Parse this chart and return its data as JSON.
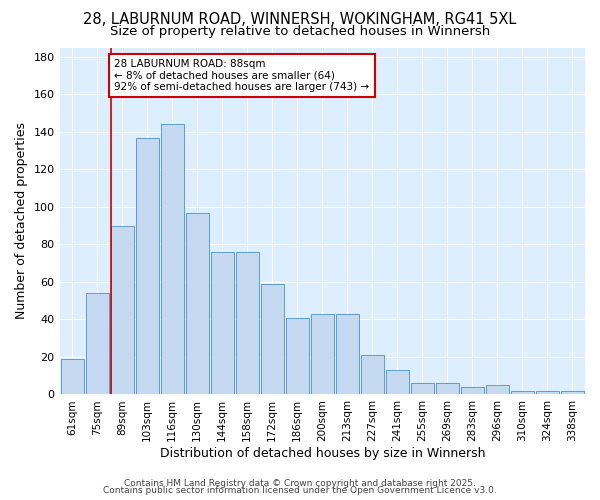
{
  "title1": "28, LABURNUM ROAD, WINNERSH, WOKINGHAM, RG41 5XL",
  "title2": "Size of property relative to detached houses in Winnersh",
  "xlabel": "Distribution of detached houses by size in Winnersh",
  "ylabel": "Number of detached properties",
  "categories": [
    "61sqm",
    "75sqm",
    "89sqm",
    "103sqm",
    "116sqm",
    "130sqm",
    "144sqm",
    "158sqm",
    "172sqm",
    "186sqm",
    "200sqm",
    "213sqm",
    "227sqm",
    "241sqm",
    "255sqm",
    "269sqm",
    "283sqm",
    "296sqm",
    "310sqm",
    "324sqm",
    "338sqm"
  ],
  "values": [
    19,
    54,
    90,
    137,
    144,
    97,
    76,
    76,
    59,
    41,
    43,
    43,
    21,
    13,
    6,
    6,
    4,
    5,
    2,
    2,
    2
  ],
  "bar_color": "#c5d9f0",
  "bar_edge_color": "#5b9bd5",
  "vline_color": "#cc0000",
  "annotation_text": "28 LABURNUM ROAD: 88sqm\n← 8% of detached houses are smaller (64)\n92% of semi-detached houses are larger (743) →",
  "annotation_box_color": "#ffffff",
  "annotation_box_edge": "#cc0000",
  "ylim": [
    0,
    185
  ],
  "yticks": [
    0,
    20,
    40,
    60,
    80,
    100,
    120,
    140,
    160,
    180
  ],
  "footer1": "Contains HM Land Registry data © Crown copyright and database right 2025.",
  "footer2": "Contains public sector information licensed under the Open Government Licence v3.0.",
  "bg_color": "#ddeeff",
  "fig_bg_color": "#ffffff",
  "grid_color": "#ffffff",
  "title_fontsize": 10.5,
  "subtitle_fontsize": 9.5,
  "tick_fontsize": 7.5,
  "label_fontsize": 9,
  "footer_fontsize": 6.5
}
